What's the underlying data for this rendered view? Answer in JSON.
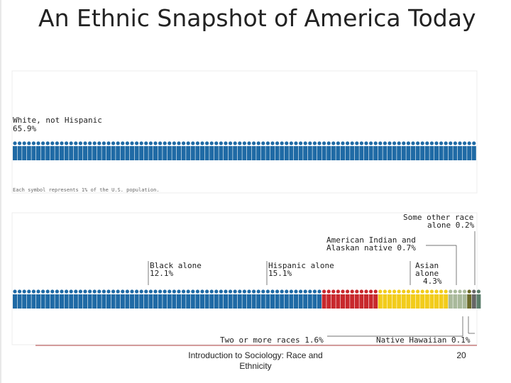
{
  "slide": {
    "title": "An Ethnic Snapshot of America Today",
    "footer": "Introduction to Sociology: Race and Ethnicity",
    "page_number": "20"
  },
  "chart_data": {
    "type": "pictogram",
    "note": "Each symbol represents 1% of the U.S. population.",
    "rows": [
      {
        "id": "row-top",
        "segments": [
          {
            "name": "White, not Hispanic",
            "label_line1": "White, not Hispanic",
            "label_line2": "65.9%",
            "value": 65.9,
            "color": "#1f6aa5"
          }
        ]
      },
      {
        "id": "row-bottom",
        "segments": [
          {
            "name": "White, not Hispanic",
            "value": 65.9,
            "color": "#1f6aa5",
            "label_line1": "",
            "label_line2": ""
          },
          {
            "name": "Black alone",
            "label_line1": "Black alone",
            "label_line2": "12.1%",
            "value": 12.1,
            "color": "#c8282d"
          },
          {
            "name": "Hispanic alone",
            "label_line1": "Hispanic alone",
            "label_line2": "15.1%",
            "value": 15.1,
            "color": "#f2cc1b"
          },
          {
            "name": "Asian alone",
            "label_line1": "Asian",
            "label_line2": "alone",
            "label_line3": "4.3%",
            "value": 4.3,
            "color": "#a9b99b"
          },
          {
            "name": "American Indian and Alaskan native",
            "label_line1": "American Indian and",
            "label_line2": "Alaskan native 0.7%",
            "value": 0.7,
            "color": "#6b6b2a"
          },
          {
            "name": "Native Hawaiian",
            "label_line1": "Native Hawaiian 0.1%",
            "value": 0.1,
            "color": "#5a7d6a"
          },
          {
            "name": "Some other race alone",
            "label_line1": "Some other race",
            "label_line2": "alone 0.2%",
            "value": 0.2,
            "color": "#666666"
          },
          {
            "name": "Two or more races",
            "label_line1": "Two or more races 1.6%",
            "value": 1.6,
            "color": "#2b8fd0"
          }
        ]
      }
    ]
  }
}
